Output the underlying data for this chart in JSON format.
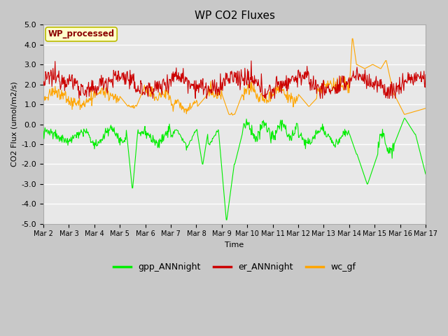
{
  "title": "WP CO2 Fluxes",
  "xlabel": "Time",
  "ylabel": "CO2 Flux (umol/m2/s)",
  "ylim": [
    -5.0,
    5.0
  ],
  "yticks": [
    -5.0,
    -4.0,
    -3.0,
    -2.0,
    -1.0,
    0.0,
    1.0,
    2.0,
    3.0,
    4.0,
    5.0
  ],
  "fig_bg_color": "#c8c8c8",
  "plot_bg_color": "#e8e8e8",
  "legend_label": "WP_processed",
  "legend_label_color": "#8B0000",
  "legend_bg_color": "#ffffcc",
  "legend_edge_color": "#bbbb00",
  "lines": {
    "gpp_ANNnight": {
      "color": "#00ee00",
      "linewidth": 0.8
    },
    "er_ANNnight": {
      "color": "#cc0000",
      "linewidth": 0.8
    },
    "wc_gf": {
      "color": "#ffa500",
      "linewidth": 0.8
    }
  },
  "start_day": 2,
  "end_day": 17,
  "seed": 12345
}
